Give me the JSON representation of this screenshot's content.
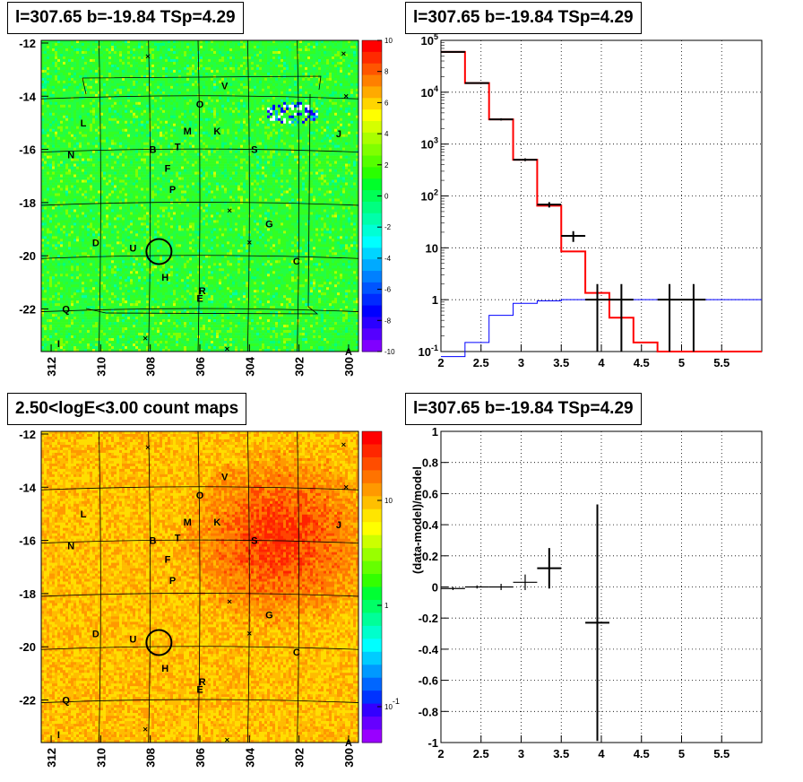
{
  "chart_data": [
    {
      "id": "tsmap",
      "type": "heatmap",
      "title": "l=307.65 b=-19.84 TSp=4.29",
      "x_ticks": [
        "312",
        "310",
        "308",
        "306",
        "304",
        "302",
        "300"
      ],
      "y_ticks": [
        "-12",
        "-14",
        "-16",
        "-18",
        "-20",
        "-22"
      ],
      "xlim": [
        312.4,
        299.6
      ],
      "ylim": [
        -23.6,
        -11.9
      ],
      "colorbar": {
        "ticks": [
          "10",
          "8",
          "6",
          "4",
          "2",
          "0",
          "-2",
          "-4",
          "-6",
          "-8",
          "-10"
        ],
        "range": [
          -10,
          10
        ]
      },
      "markers": [
        {
          "label": "V",
          "l": 305.0,
          "b": -13.6
        },
        {
          "label": "O",
          "l": 306.0,
          "b": -14.3
        },
        {
          "label": "L",
          "l": 310.7,
          "b": -15.0
        },
        {
          "label": "M",
          "l": 306.5,
          "b": -15.3
        },
        {
          "label": "K",
          "l": 305.3,
          "b": -15.3
        },
        {
          "label": "J",
          "l": 300.4,
          "b": -15.4
        },
        {
          "label": "N",
          "l": 311.2,
          "b": -16.2
        },
        {
          "label": "B",
          "l": 307.9,
          "b": -16.0
        },
        {
          "label": "T",
          "l": 306.9,
          "b": -15.9
        },
        {
          "label": "S",
          "l": 303.8,
          "b": -16.0
        },
        {
          "label": "F",
          "l": 307.3,
          "b": -16.7
        },
        {
          "label": "P",
          "l": 307.1,
          "b": -17.5
        },
        {
          "label": "G",
          "l": 303.2,
          "b": -18.8
        },
        {
          "label": "D",
          "l": 310.2,
          "b": -19.5
        },
        {
          "label": "U",
          "l": 308.7,
          "b": -19.7
        },
        {
          "label": "C",
          "l": 302.1,
          "b": -20.2
        },
        {
          "label": "H",
          "l": 307.4,
          "b": -20.8
        },
        {
          "label": "R",
          "l": 305.9,
          "b": -21.3
        },
        {
          "label": "E",
          "l": 306.0,
          "b": -21.6
        },
        {
          "label": "Q",
          "l": 311.4,
          "b": -22.0
        },
        {
          "label": "I",
          "l": 311.7,
          "b": -23.3
        },
        {
          "label": "A",
          "l": 300.0,
          "b": -23.6
        }
      ],
      "circle": {
        "l": 307.65,
        "b": -19.84
      }
    },
    {
      "id": "spectrum",
      "type": "line",
      "title": "l=307.65 b=-19.84 TSp=4.29",
      "x_ticks": [
        "2",
        "2.5",
        "3",
        "3.5",
        "4",
        "4.5",
        "5",
        "5.5"
      ],
      "y_ticks": [
        "10^-1",
        "1",
        "10",
        "10^2",
        "10^3",
        "10^4",
        "10^5"
      ],
      "y_scale": "log",
      "xlim": [
        2.0,
        6.0
      ],
      "ylim": [
        0.1,
        100000
      ],
      "grid": true,
      "series": [
        {
          "color": "#ff0000",
          "values": [
            [
              2.0,
              60000
            ],
            [
              2.3,
              15000
            ],
            [
              2.6,
              3000
            ],
            [
              2.9,
              500
            ],
            [
              3.2,
              65
            ],
            [
              3.5,
              8.5
            ],
            [
              3.8,
              1.35
            ],
            [
              4.1,
              0.45
            ],
            [
              4.4,
              0.15
            ],
            [
              4.7,
              0.1
            ],
            [
              6.0,
              0.1
            ]
          ]
        },
        {
          "color": "#0000ff",
          "values": [
            [
              2.0,
              0.08
            ],
            [
              2.3,
              0.15
            ],
            [
              2.6,
              0.5
            ],
            [
              2.9,
              0.85
            ],
            [
              3.2,
              0.95
            ],
            [
              3.5,
              1.0
            ],
            [
              3.8,
              1.0
            ],
            [
              4.1,
              1.0
            ],
            [
              6.0,
              1.0
            ]
          ]
        }
      ],
      "data_points": [
        {
          "x": 2.15,
          "y": 60000,
          "xerr": 0.15,
          "ylo": 58000,
          "yhi": 62000
        },
        {
          "x": 2.45,
          "y": 15000,
          "xerr": 0.15,
          "ylo": 14500,
          "yhi": 15500
        },
        {
          "x": 2.75,
          "y": 3000,
          "xerr": 0.15,
          "ylo": 2850,
          "yhi": 3150
        },
        {
          "x": 3.05,
          "y": 500,
          "xerr": 0.15,
          "ylo": 470,
          "yhi": 530
        },
        {
          "x": 3.35,
          "y": 68,
          "xerr": 0.15,
          "ylo": 60,
          "yhi": 76
        },
        {
          "x": 3.65,
          "y": 17,
          "xerr": 0.15,
          "ylo": 13,
          "yhi": 21
        },
        {
          "x": 3.95,
          "y": 1,
          "xerr": 0.15,
          "ylo": 0.08,
          "yhi": 2.0
        },
        {
          "x": 4.25,
          "y": 1,
          "xerr": 0.15,
          "ylo": 0.08,
          "yhi": 2.0
        },
        {
          "x": 4.85,
          "y": 1,
          "xerr": 0.15,
          "ylo": 0.08,
          "yhi": 2.0
        },
        {
          "x": 5.15,
          "y": 1,
          "xerr": 0.15,
          "ylo": 0.08,
          "yhi": 2.0
        }
      ]
    },
    {
      "id": "countmap",
      "type": "heatmap",
      "title": "2.50<logE<3.00 count maps",
      "x_ticks": [
        "312",
        "310",
        "308",
        "306",
        "304",
        "302",
        "300"
      ],
      "y_ticks": [
        "-12",
        "-14",
        "-16",
        "-18",
        "-20",
        "-22"
      ],
      "colorbar": {
        "ticks": [
          "10",
          "1",
          "10^-1"
        ],
        "scale": "log"
      },
      "hotspot": {
        "l": 303.0,
        "b": -15.5
      }
    },
    {
      "id": "residual",
      "type": "scatter",
      "title": "l=307.65 b=-19.84 TSp=4.29",
      "ylabel": "(data-model)/model",
      "x_ticks": [
        "2",
        "2.5",
        "3",
        "3.5",
        "4",
        "4.5",
        "5",
        "5.5"
      ],
      "y_ticks": [
        "1",
        "0.8",
        "0.6",
        "0.4",
        "0.2",
        "0",
        "-0.2",
        "-0.4",
        "-0.6",
        "-0.8",
        "-1"
      ],
      "xlim": [
        2.0,
        6.0
      ],
      "ylim": [
        -1.0,
        1.0
      ],
      "grid": true,
      "points": [
        {
          "x": 2.15,
          "y": -0.01,
          "xerr": 0.15,
          "yerr": 0.01
        },
        {
          "x": 2.45,
          "y": 0.0,
          "xerr": 0.15,
          "yerr": 0.01
        },
        {
          "x": 2.75,
          "y": 0.0,
          "xerr": 0.15,
          "yerr": 0.02
        },
        {
          "x": 3.05,
          "y": 0.03,
          "xerr": 0.15,
          "yerr": 0.05
        },
        {
          "x": 3.35,
          "y": 0.12,
          "xerr": 0.15,
          "yerr": 0.13
        },
        {
          "x": 3.95,
          "y": -0.23,
          "xerr": 0.15,
          "yerr": 0.76
        }
      ]
    }
  ]
}
